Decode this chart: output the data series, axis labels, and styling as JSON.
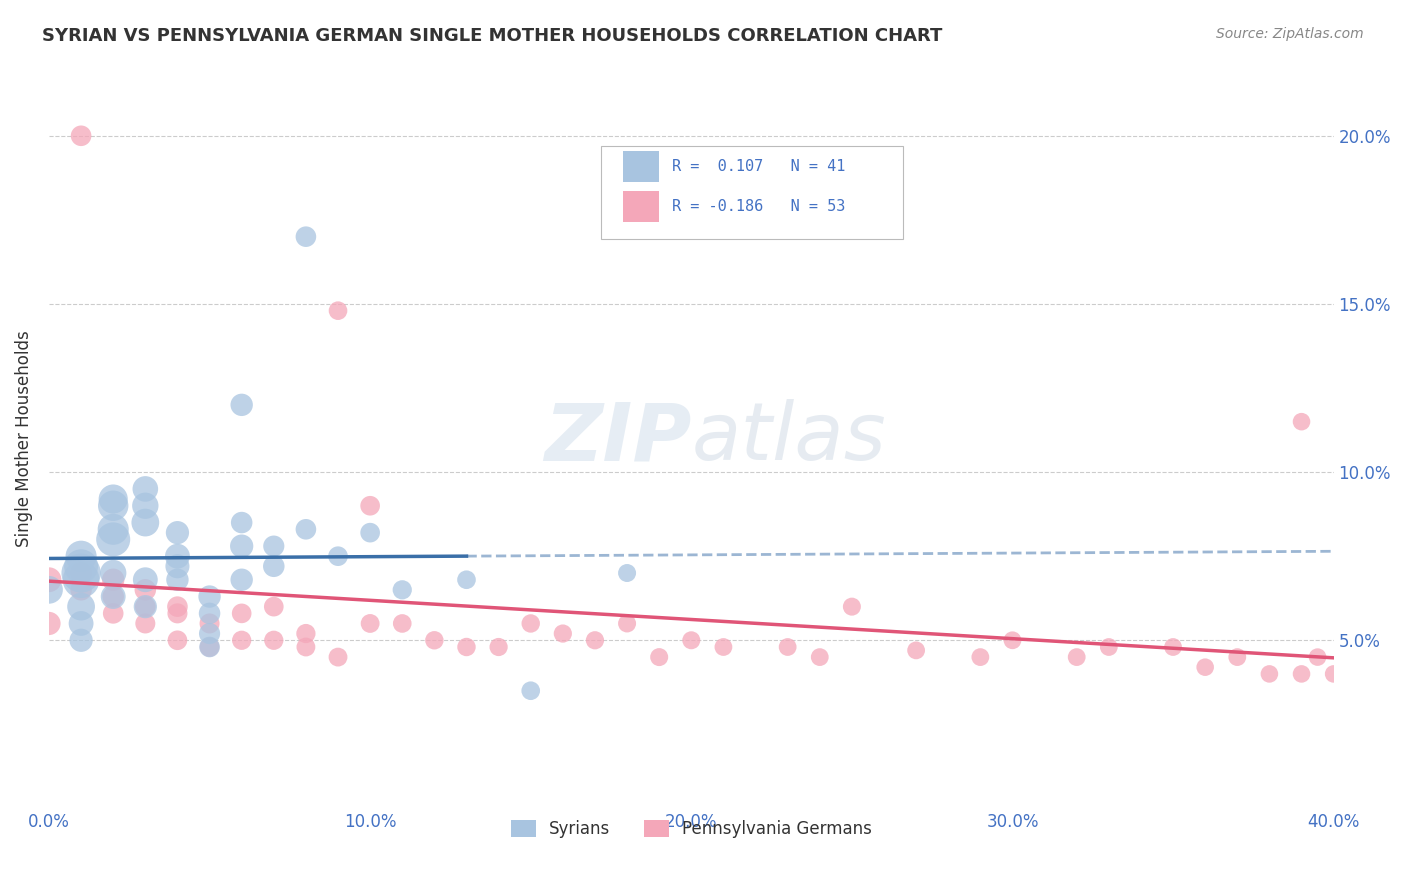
{
  "title": "SYRIAN VS PENNSYLVANIA GERMAN SINGLE MOTHER HOUSEHOLDS CORRELATION CHART",
  "source": "Source: ZipAtlas.com",
  "ylabel": "Single Mother Households",
  "xlim": [
    0.0,
    0.4
  ],
  "ylim": [
    0.0,
    0.22
  ],
  "yticks": [
    0.05,
    0.1,
    0.15,
    0.2
  ],
  "ytick_labels": [
    "5.0%",
    "10.0%",
    "15.0%",
    "20.0%"
  ],
  "xticks": [
    0.0,
    0.1,
    0.2,
    0.3,
    0.4
  ],
  "xtick_labels": [
    "0.0%",
    "10.0%",
    "20.0%",
    "30.0%",
    "40.0%"
  ],
  "watermark": "ZIPatlas",
  "color_blue": "#a8c4e0",
  "color_pink": "#f4a7b9",
  "line_blue": "#3a6fa8",
  "line_pink": "#e05577",
  "syrians_x": [
    0.0,
    0.01,
    0.01,
    0.01,
    0.01,
    0.01,
    0.01,
    0.01,
    0.02,
    0.02,
    0.02,
    0.02,
    0.02,
    0.02,
    0.03,
    0.03,
    0.03,
    0.03,
    0.03,
    0.04,
    0.04,
    0.04,
    0.04,
    0.05,
    0.05,
    0.05,
    0.05,
    0.06,
    0.06,
    0.06,
    0.06,
    0.07,
    0.07,
    0.08,
    0.08,
    0.09,
    0.1,
    0.11,
    0.13,
    0.15,
    0.18
  ],
  "syrians_y": [
    0.065,
    0.07,
    0.068,
    0.072,
    0.075,
    0.06,
    0.055,
    0.05,
    0.08,
    0.083,
    0.09,
    0.092,
    0.07,
    0.063,
    0.085,
    0.09,
    0.095,
    0.068,
    0.06,
    0.075,
    0.072,
    0.082,
    0.068,
    0.063,
    0.058,
    0.052,
    0.048,
    0.068,
    0.078,
    0.12,
    0.085,
    0.072,
    0.078,
    0.083,
    0.17,
    0.075,
    0.082,
    0.065,
    0.068,
    0.035,
    0.07
  ],
  "syrians_size": [
    400,
    800,
    700,
    600,
    500,
    400,
    320,
    280,
    600,
    500,
    480,
    440,
    360,
    320,
    400,
    360,
    340,
    320,
    280,
    320,
    300,
    280,
    260,
    260,
    240,
    232,
    220,
    260,
    280,
    260,
    240,
    240,
    232,
    220,
    220,
    200,
    200,
    192,
    180,
    180,
    168
  ],
  "pagermans_x": [
    0.0,
    0.0,
    0.01,
    0.01,
    0.01,
    0.02,
    0.02,
    0.02,
    0.03,
    0.03,
    0.03,
    0.04,
    0.04,
    0.04,
    0.05,
    0.05,
    0.06,
    0.06,
    0.07,
    0.07,
    0.08,
    0.08,
    0.09,
    0.09,
    0.1,
    0.1,
    0.11,
    0.12,
    0.13,
    0.14,
    0.15,
    0.16,
    0.17,
    0.18,
    0.19,
    0.2,
    0.21,
    0.23,
    0.24,
    0.25,
    0.27,
    0.29,
    0.3,
    0.32,
    0.33,
    0.35,
    0.36,
    0.37,
    0.38,
    0.39,
    0.39,
    0.395,
    0.4
  ],
  "pagermans_y": [
    0.068,
    0.055,
    0.07,
    0.065,
    0.2,
    0.068,
    0.063,
    0.058,
    0.065,
    0.06,
    0.055,
    0.06,
    0.058,
    0.05,
    0.055,
    0.048,
    0.058,
    0.05,
    0.06,
    0.05,
    0.052,
    0.048,
    0.045,
    0.148,
    0.09,
    0.055,
    0.055,
    0.05,
    0.048,
    0.048,
    0.055,
    0.052,
    0.05,
    0.055,
    0.045,
    0.05,
    0.048,
    0.048,
    0.045,
    0.06,
    0.047,
    0.045,
    0.05,
    0.045,
    0.048,
    0.048,
    0.042,
    0.045,
    0.04,
    0.04,
    0.115,
    0.045,
    0.04
  ],
  "pagermans_size": [
    320,
    280,
    260,
    240,
    220,
    260,
    240,
    220,
    240,
    220,
    208,
    220,
    208,
    200,
    208,
    200,
    200,
    192,
    200,
    192,
    192,
    184,
    184,
    180,
    200,
    184,
    180,
    176,
    176,
    172,
    176,
    172,
    172,
    168,
    168,
    168,
    164,
    164,
    164,
    168,
    164,
    164,
    164,
    164,
    164,
    164,
    160,
    164,
    160,
    160,
    160,
    160,
    160
  ]
}
